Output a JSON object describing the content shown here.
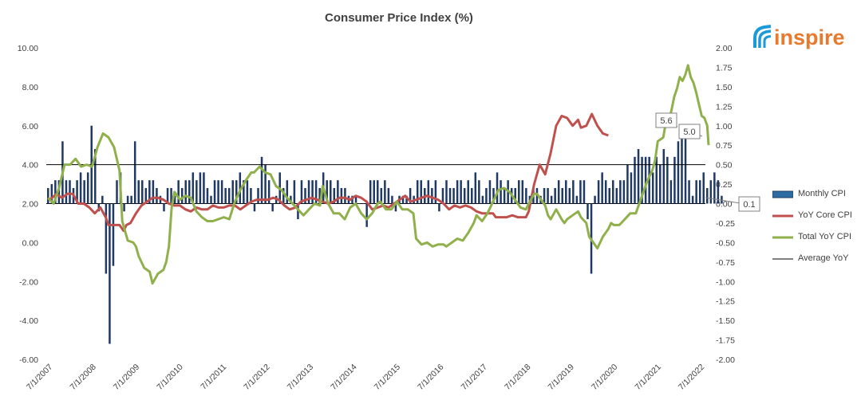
{
  "chart_data": {
    "type": "bar",
    "title": "Consumer Price Index (%)",
    "left_axis": {
      "min": -6,
      "max": 10,
      "step": 2,
      "ticks": [
        "10.00",
        "8.00",
        "6.00",
        "4.00",
        "2.00",
        "0.00",
        "-2.00",
        "-4.00",
        "-6.00"
      ]
    },
    "right_axis": {
      "min": -2,
      "max": 2,
      "step": 0.25,
      "ticks": [
        "2.00",
        "1.75",
        "1.50",
        "1.25",
        "1.00",
        "0.75",
        "0.50",
        "0.25",
        "0.00",
        "-0.25",
        "-0.50",
        "-0.75",
        "-1.00",
        "-1.25",
        "-1.50",
        "-1.75",
        "-2.00"
      ]
    },
    "x_labels": [
      "7/1/2007",
      "7/1/2008",
      "7/1/2009",
      "7/1/2010",
      "7/1/2011",
      "7/1/2012",
      "7/1/2013",
      "7/1/2014",
      "7/1/2015",
      "7/1/2016",
      "7/1/2017",
      "7/1/2018",
      "7/1/2019",
      "7/1/2020",
      "7/1/2021",
      "7/1/2022"
    ],
    "start": "2007-07",
    "series": [
      {
        "name": "Monthly CPI",
        "axis": "right",
        "color": "#1f3864",
        "values": [
          0.2,
          0.25,
          0.3,
          0.3,
          0.8,
          0.3,
          0.3,
          0.2,
          0.3,
          0.4,
          0.3,
          0.4,
          1.0,
          0.7,
          -0.1,
          0.1,
          -0.9,
          -1.8,
          -0.8,
          0.3,
          0.4,
          -0.1,
          0.1,
          0.1,
          0.8,
          0.3,
          0.3,
          0.2,
          0.3,
          0.3,
          0.2,
          0.1,
          -0.1,
          0.2,
          0.2,
          0.1,
          0.3,
          0.2,
          0.3,
          0.3,
          0.4,
          0.3,
          0.4,
          0.4,
          0.2,
          0.1,
          0.3,
          0.3,
          0.3,
          0.2,
          0.2,
          0.3,
          0.3,
          0.4,
          0.3,
          0.3,
          0.2,
          -0.1,
          0.2,
          0.6,
          0.5,
          0.3,
          -0.1,
          0.1,
          0.4,
          0.2,
          0.3,
          0.1,
          0.3,
          -0.2,
          0.3,
          0.2,
          0.3,
          0.3,
          0.3,
          0.2,
          0.4,
          0.3,
          0.3,
          0.2,
          0.3,
          0.2,
          0.2,
          0.1,
          0.1,
          0.1,
          0.0,
          0.0,
          -0.3,
          0.3,
          0.3,
          0.3,
          0.2,
          0.3,
          0.2,
          0.1,
          -0.1,
          0.1,
          0.1,
          0.1,
          0.2,
          0.1,
          0.3,
          0.3,
          0.2,
          0.3,
          0.2,
          0.3,
          -0.1,
          0.2,
          0.3,
          0.2,
          0.2,
          0.3,
          0.3,
          0.2,
          0.3,
          0.2,
          0.4,
          0.3,
          0.1,
          0.2,
          0.3,
          0.2,
          0.4,
          0.3,
          0.2,
          0.3,
          0.2,
          0.2,
          0.3,
          0.3,
          0.2,
          0.1,
          0.2,
          0.2,
          0.1,
          0.2,
          0.2,
          0.1,
          0.2,
          0.3,
          0.2,
          0.3,
          0.2,
          0.3,
          0.1,
          0.3,
          0.3,
          -0.2,
          -0.9,
          0.1,
          0.3,
          0.4,
          0.3,
          0.2,
          0.3,
          0.2,
          0.3,
          0.3,
          0.5,
          0.4,
          0.6,
          0.7,
          0.6,
          0.6,
          0.6,
          0.4,
          0.6,
          0.5,
          0.7,
          0.6,
          0.3,
          0.6,
          0.8,
          0.9,
          1.0,
          0.3,
          0.1,
          0.3,
          0.3,
          0.4,
          0.2,
          0.3,
          0.4,
          0.3,
          0.1
        ]
      },
      {
        "name": "YoY Core CPI",
        "axis": "left",
        "color": "#c0504d",
        "points": [
          [
            0,
            2.2
          ],
          [
            3,
            2.3
          ],
          [
            6,
            2.5
          ],
          [
            10,
            2.3
          ],
          [
            14,
            2.5
          ],
          [
            18,
            2.5
          ],
          [
            22,
            2.0
          ],
          [
            26,
            2.0
          ],
          [
            30,
            1.8
          ],
          [
            34,
            1.5
          ],
          [
            38,
            1.8
          ],
          [
            42,
            1.3
          ],
          [
            44,
            0.9
          ],
          [
            48,
            0.9
          ],
          [
            52,
            0.9
          ],
          [
            55,
            0.6
          ],
          [
            57,
            0.9
          ],
          [
            60,
            1.0
          ],
          [
            64,
            1.5
          ],
          [
            68,
            1.9
          ],
          [
            72,
            2.1
          ],
          [
            76,
            2.3
          ],
          [
            80,
            2.3
          ],
          [
            84,
            2.2
          ],
          [
            88,
            2.0
          ],
          [
            92,
            1.9
          ],
          [
            96,
            1.9
          ],
          [
            100,
            1.7
          ],
          [
            104,
            1.6
          ],
          [
            108,
            1.8
          ],
          [
            112,
            1.7
          ],
          [
            116,
            1.7
          ],
          [
            120,
            1.9
          ],
          [
            124,
            1.8
          ],
          [
            128,
            1.8
          ],
          [
            132,
            1.9
          ],
          [
            136,
            1.9
          ],
          [
            140,
            1.7
          ],
          [
            144,
            1.9
          ],
          [
            148,
            2.1
          ],
          [
            152,
            2.2
          ],
          [
            156,
            2.2
          ],
          [
            160,
            2.2
          ],
          [
            164,
            2.3
          ],
          [
            168,
            2.2
          ],
          [
            172,
            1.9
          ],
          [
            176,
            1.7
          ],
          [
            180,
            1.8
          ],
          [
            184,
            2.1
          ],
          [
            188,
            2.2
          ],
          [
            192,
            2.3
          ],
          [
            196,
            2.2
          ],
          [
            200,
            2.1
          ],
          [
            204,
            2.0
          ],
          [
            208,
            2.1
          ],
          [
            212,
            2.3
          ],
          [
            216,
            2.3
          ],
          [
            220,
            2.2
          ],
          [
            224,
            2.4
          ],
          [
            228,
            2.3
          ],
          [
            232,
            2.1
          ],
          [
            236,
            1.7
          ],
          [
            240,
            1.8
          ],
          [
            244,
            1.9
          ],
          [
            248,
            1.8
          ],
          [
            252,
            2.0
          ],
          [
            256,
            2.2
          ],
          [
            260,
            2.4
          ],
          [
            264,
            2.1
          ],
          [
            268,
            2.2
          ],
          [
            272,
            2.3
          ],
          [
            276,
            2.4
          ],
          [
            280,
            2.3
          ],
          [
            284,
            2.2
          ],
          [
            288,
            2.0
          ],
          [
            292,
            1.7
          ],
          [
            296,
            1.9
          ],
          [
            300,
            1.8
          ],
          [
            304,
            1.9
          ],
          [
            308,
            1.8
          ],
          [
            312,
            1.6
          ],
          [
            316,
            1.5
          ],
          [
            320,
            1.5
          ],
          [
            324,
            1.5
          ],
          [
            326,
            1.3
          ],
          [
            330,
            1.3
          ],
          [
            334,
            1.3
          ],
          [
            338,
            1.4
          ],
          [
            342,
            1.3
          ],
          [
            346,
            1.3
          ],
          [
            348,
            1.3
          ],
          [
            350,
            1.6
          ],
          [
            354,
            3.0
          ],
          [
            358,
            4.0
          ],
          [
            362,
            3.5
          ],
          [
            366,
            4.6
          ],
          [
            370,
            6.0
          ],
          [
            374,
            6.5
          ],
          [
            378,
            6.4
          ],
          [
            382,
            6.0
          ],
          [
            386,
            6.3
          ],
          [
            388,
            5.9
          ],
          [
            392,
            6.0
          ],
          [
            396,
            6.6
          ],
          [
            400,
            6.0
          ],
          [
            404,
            5.6
          ],
          [
            408,
            5.5
          ]
        ]
      },
      {
        "name": "Total YoY CPI",
        "axis": "left",
        "color": "#8fb04b",
        "points": [
          [
            0,
            2.3
          ],
          [
            4,
            2.0
          ],
          [
            8,
            2.8
          ],
          [
            12,
            4.0
          ],
          [
            16,
            4.0
          ],
          [
            20,
            4.3
          ],
          [
            24,
            3.9
          ],
          [
            28,
            4.0
          ],
          [
            32,
            3.9
          ],
          [
            36,
            4.9
          ],
          [
            40,
            5.6
          ],
          [
            44,
            5.4
          ],
          [
            48,
            4.9
          ],
          [
            52,
            3.7
          ],
          [
            54,
            1.1
          ],
          [
            58,
            0.1
          ],
          [
            62,
            0.0
          ],
          [
            64,
            -0.2
          ],
          [
            66,
            -0.7
          ],
          [
            70,
            -1.3
          ],
          [
            74,
            -1.5
          ],
          [
            76,
            -2.1
          ],
          [
            80,
            -1.6
          ],
          [
            84,
            -1.4
          ],
          [
            86,
            -1.0
          ],
          [
            88,
            -0.2
          ],
          [
            90,
            1.8
          ],
          [
            92,
            2.6
          ],
          [
            96,
            2.2
          ],
          [
            100,
            2.4
          ],
          [
            104,
            2.3
          ],
          [
            108,
            1.6
          ],
          [
            112,
            1.3
          ],
          [
            116,
            1.1
          ],
          [
            120,
            1.1
          ],
          [
            124,
            1.2
          ],
          [
            128,
            1.3
          ],
          [
            132,
            1.2
          ],
          [
            136,
            2.1
          ],
          [
            140,
            2.7
          ],
          [
            144,
            3.2
          ],
          [
            148,
            3.6
          ],
          [
            150,
            3.6
          ],
          [
            154,
            3.9
          ],
          [
            158,
            3.6
          ],
          [
            162,
            3.5
          ],
          [
            166,
            2.9
          ],
          [
            170,
            2.7
          ],
          [
            174,
            2.3
          ],
          [
            178,
            2.0
          ],
          [
            182,
            1.7
          ],
          [
            186,
            1.4
          ],
          [
            190,
            1.7
          ],
          [
            194,
            2.0
          ],
          [
            198,
            1.9
          ],
          [
            200,
            2.9
          ],
          [
            204,
            2.0
          ],
          [
            208,
            1.5
          ],
          [
            212,
            1.5
          ],
          [
            216,
            1.2
          ],
          [
            220,
            1.8
          ],
          [
            224,
            2.0
          ],
          [
            228,
            1.5
          ],
          [
            232,
            1.2
          ],
          [
            236,
            1.5
          ],
          [
            240,
            2.0
          ],
          [
            242,
            2.1
          ],
          [
            246,
            1.7
          ],
          [
            250,
            1.7
          ],
          [
            254,
            2.1
          ],
          [
            258,
            1.7
          ],
          [
            262,
            1.7
          ],
          [
            266,
            1.5
          ],
          [
            268,
            0.2
          ],
          [
            272,
            -0.1
          ],
          [
            276,
            0.0
          ],
          [
            280,
            -0.2
          ],
          [
            284,
            -0.1
          ],
          [
            288,
            -0.1
          ],
          [
            290,
            -0.2
          ],
          [
            294,
            0.0
          ],
          [
            298,
            0.2
          ],
          [
            302,
            0.1
          ],
          [
            306,
            0.5
          ],
          [
            310,
            1.0
          ],
          [
            312,
            1.4
          ],
          [
            316,
            1.1
          ],
          [
            320,
            1.5
          ],
          [
            324,
            2.1
          ],
          [
            328,
            2.7
          ],
          [
            332,
            2.8
          ],
          [
            336,
            2.6
          ],
          [
            340,
            2.2
          ],
          [
            344,
            1.8
          ],
          [
            348,
            1.7
          ],
          [
            350,
            2.0
          ],
          [
            354,
            2.5
          ],
          [
            356,
            2.5
          ],
          [
            360,
            2.1
          ],
          [
            362,
            1.9
          ],
          [
            364,
            1.4
          ],
          [
            366,
            1.2
          ],
          [
            370,
            1.7
          ],
          [
            374,
            1.2
          ],
          [
            376,
            1.0
          ],
          [
            378,
            1.2
          ],
          [
            382,
            1.4
          ],
          [
            386,
            1.6
          ],
          [
            388,
            1.3
          ],
          [
            392,
            1.0
          ],
          [
            394,
            0.3
          ],
          [
            398,
            -0.1
          ],
          [
            400,
            -0.3
          ],
          [
            404,
            0.3
          ],
          [
            408,
            0.7
          ],
          [
            410,
            1.0
          ],
          [
            412,
            0.9
          ],
          [
            416,
            0.9
          ],
          [
            420,
            1.2
          ],
          [
            424,
            1.5
          ],
          [
            428,
            1.5
          ],
          [
            432,
            2.3
          ],
          [
            436,
            3.1
          ],
          [
            440,
            3.7
          ],
          [
            442,
            4.2
          ],
          [
            444,
            5.2
          ],
          [
            446,
            5.3
          ],
          [
            448,
            5.4
          ],
          [
            450,
            6.2
          ],
          [
            452,
            6.2
          ],
          [
            454,
            6.8
          ],
          [
            456,
            7.5
          ],
          [
            458,
            7.9
          ],
          [
            460,
            8.5
          ],
          [
            462,
            8.3
          ],
          [
            464,
            8.6
          ],
          [
            466,
            9.1
          ],
          [
            468,
            8.5
          ],
          [
            470,
            8.2
          ],
          [
            472,
            7.7
          ],
          [
            474,
            7.1
          ],
          [
            476,
            6.5
          ],
          [
            478,
            6.4
          ],
          [
            480,
            6.0
          ],
          [
            481,
            5.0
          ]
        ]
      },
      {
        "name": "Average YoY",
        "axis": "right",
        "color": "#000000",
        "value": 0.5
      }
    ],
    "callouts": [
      "5.6",
      "5.0",
      "0.1"
    ],
    "legend_position": "right"
  },
  "logo": {
    "text": "inspire",
    "color": "#e8792d",
    "icon_color": "#1a9ad6"
  }
}
